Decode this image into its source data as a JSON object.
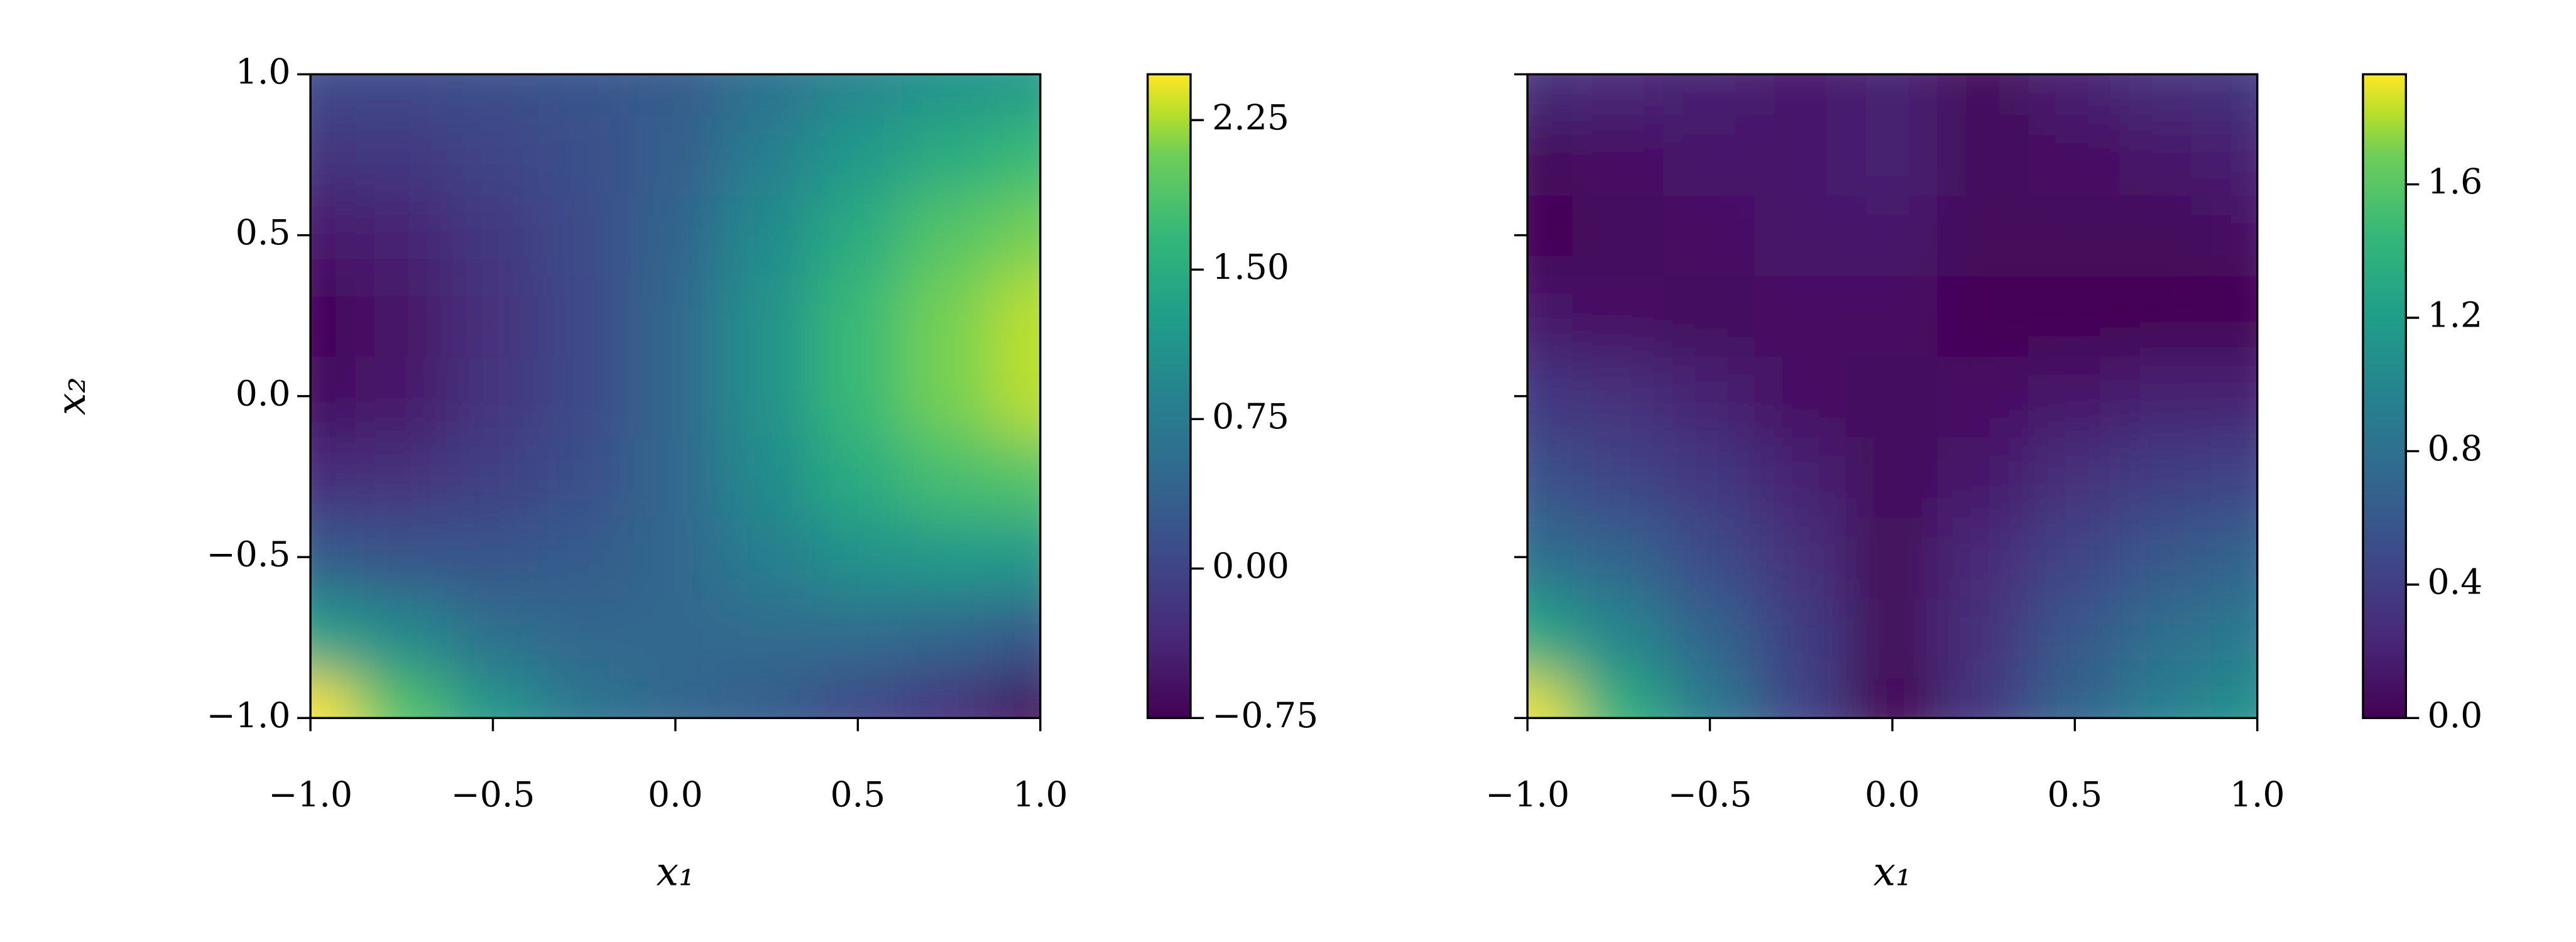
{
  "chart_data": [
    {
      "type": "contour",
      "colormap": "viridis",
      "x": [
        -1,
        -0.75,
        -0.5,
        -0.25,
        0,
        0.25,
        0.5,
        0.75,
        1
      ],
      "y": [
        -1,
        -0.75,
        -0.5,
        -0.25,
        0,
        0.25,
        0.5,
        0.75,
        1
      ],
      "z": [
        [
          2.5,
          1.9,
          1.2,
          0.7,
          0.45,
          0.3,
          0.0,
          -0.3,
          -0.7
        ],
        [
          1.3,
          1.0,
          0.6,
          0.45,
          0.45,
          0.5,
          0.5,
          0.4,
          0.2
        ],
        [
          0.3,
          0.2,
          0.2,
          0.3,
          0.45,
          0.8,
          1.1,
          1.2,
          1.2
        ],
        [
          -0.3,
          -0.25,
          -0.05,
          0.15,
          0.45,
          1.0,
          1.5,
          1.8,
          1.9
        ],
        [
          -0.6,
          -0.5,
          -0.2,
          0.05,
          0.45,
          1.1,
          1.7,
          2.1,
          2.3
        ],
        [
          -0.7,
          -0.55,
          -0.25,
          0.05,
          0.45,
          1.1,
          1.7,
          2.1,
          2.3
        ],
        [
          -0.5,
          -0.4,
          -0.15,
          0.1,
          0.4,
          1.0,
          1.5,
          1.9,
          2.1
        ],
        [
          -0.2,
          -0.15,
          0,
          0.15,
          0.35,
          0.8,
          1.2,
          1.5,
          1.7
        ],
        [
          0.1,
          0.1,
          0.15,
          0.2,
          0.3,
          0.6,
          0.9,
          1.1,
          1.2
        ]
      ],
      "xlim": [
        -1,
        1
      ],
      "ylim": [
        -1,
        1
      ],
      "xticks": [
        {
          "value": -1,
          "label": "−1.0"
        },
        {
          "value": -0.5,
          "label": "−0.5"
        },
        {
          "value": 0,
          "label": "0.0"
        },
        0.5,
        {
          "value": 1,
          "label": "1.0"
        }
      ],
      "yticks": [
        {
          "value": -1,
          "label": "−1.0"
        },
        {
          "value": -0.5,
          "label": "−0.5"
        },
        {
          "value": 0,
          "label": "0.0"
        },
        0.5,
        {
          "value": 1,
          "label": "1.0"
        }
      ],
      "xlabel": "x₁",
      "ylabel": "x₂",
      "colorbar": {
        "vlim": [
          -0.75,
          2.48
        ],
        "ticks": [
          {
            "value": -0.75,
            "label": "−0.75"
          },
          {
            "value": 0,
            "label": "0.00"
          },
          0.75,
          {
            "value": 1.5,
            "label": "1.50"
          },
          2.25
        ]
      }
    },
    {
      "type": "contour",
      "colormap": "viridis",
      "sharey": true,
      "x": [
        -1,
        -0.75,
        -0.5,
        -0.25,
        0,
        0.25,
        0.5,
        0.75,
        1
      ],
      "y": [
        -1,
        -0.75,
        -0.5,
        -0.25,
        0,
        0.25,
        0.5,
        0.75,
        1
      ],
      "z": [
        [
          1.9,
          1.4,
          0.9,
          0.45,
          0.0,
          0.35,
          0.7,
          0.95,
          1.1
        ],
        [
          1.3,
          1.0,
          0.7,
          0.4,
          0.05,
          0.3,
          0.6,
          0.8,
          0.9
        ],
        [
          0.8,
          0.7,
          0.5,
          0.3,
          0.05,
          0.25,
          0.45,
          0.6,
          0.7
        ],
        [
          0.55,
          0.45,
          0.35,
          0.2,
          0.05,
          0.15,
          0.3,
          0.4,
          0.45
        ],
        [
          0.35,
          0.3,
          0.2,
          0.1,
          0.05,
          0.1,
          0.15,
          0.2,
          0.2
        ],
        [
          0.15,
          0.1,
          0.05,
          0.1,
          0.1,
          0.0,
          0.0,
          0.0,
          0.0
        ],
        [
          0.0,
          0.05,
          0.1,
          0.15,
          0.15,
          0.05,
          0.05,
          0.05,
          0.1
        ],
        [
          0.05,
          0.1,
          0.15,
          0.15,
          0.2,
          0.05,
          0.1,
          0.15,
          0.2
        ],
        [
          0.3,
          0.25,
          0.2,
          0.15,
          0.2,
          0.05,
          0.2,
          0.3,
          0.35
        ]
      ],
      "xlim": [
        -1,
        1
      ],
      "ylim": [
        -1,
        1
      ],
      "xticks": [
        {
          "value": -1,
          "label": "−1.0"
        },
        {
          "value": -0.5,
          "label": "−0.5"
        },
        {
          "value": 0,
          "label": "0.0"
        },
        0.5,
        {
          "value": 1,
          "label": "1.0"
        }
      ],
      "xlabel": "x₁",
      "colorbar": {
        "vlim": [
          0,
          1.93
        ],
        "ticks": [
          {
            "value": 0,
            "label": "0.0"
          },
          0.4,
          0.8,
          1.2,
          1.6
        ]
      }
    }
  ]
}
